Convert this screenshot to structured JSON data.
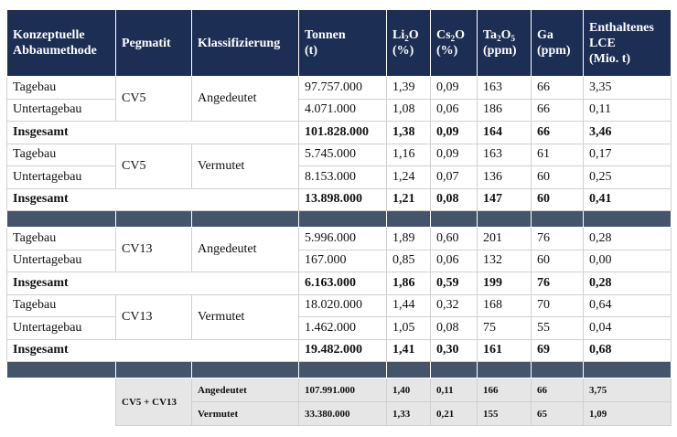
{
  "header": {
    "method": [
      "Konzeptuelle",
      "Abbaumethode"
    ],
    "pegmatit": "Pegmatit",
    "klass": "Klassifizierung",
    "tonnen": [
      "Tonnen",
      "(t)"
    ],
    "li": {
      "a": "Li",
      "s": "2",
      "b": "O",
      "u": "(%)"
    },
    "cs": {
      "a": "Cs",
      "s": "2",
      "b": "O",
      "u": "(%)"
    },
    "ta": {
      "a": "Ta",
      "s": "2",
      "b": "O",
      "s2": "5",
      "u": "(ppm)"
    },
    "ga": [
      "Ga",
      "(ppm)"
    ],
    "lce": [
      "Enthaltenes",
      "LCE",
      "(Mio. t)"
    ]
  },
  "groups": [
    {
      "peg": "CV5",
      "klass": "Angedeutet",
      "rows": [
        [
          "Tagebau",
          "97.757.000",
          "1,39",
          "0,09",
          "163",
          "66",
          "3,35"
        ],
        [
          "Untertagebau",
          "4.071.000",
          "1,08",
          "0,06",
          "186",
          "66",
          "0,11"
        ]
      ],
      "total": [
        "Insgesamt",
        "101.828.000",
        "1,38",
        "0,09",
        "164",
        "66",
        "3,46"
      ]
    },
    {
      "peg": "CV5",
      "klass": "Vermutet",
      "rows": [
        [
          "Tagebau",
          "5.745.000",
          "1,16",
          "0,09",
          "163",
          "61",
          "0,17"
        ],
        [
          "Untertagebau",
          "8.153.000",
          "1,24",
          "0,07",
          "136",
          "60",
          "0,25"
        ]
      ],
      "total": [
        "Insgesamt",
        "13.898.000",
        "1,21",
        "0,08",
        "147",
        "60",
        "0,41"
      ]
    },
    {
      "peg": "CV13",
      "klass": "Angedeutet",
      "rows": [
        [
          "Tagebau",
          "5.996.000",
          "1,89",
          "0,60",
          "201",
          "76",
          "0,28"
        ],
        [
          "Untertagebau",
          "167.000",
          "0,85",
          "0,06",
          "132",
          "60",
          "0,00"
        ]
      ],
      "total": [
        "Insgesamt",
        "6.163.000",
        "1,86",
        "0,59",
        "199",
        "76",
        "0,28"
      ]
    },
    {
      "peg": "CV13",
      "klass": "Vermutet",
      "rows": [
        [
          "Tagebau",
          "18.020.000",
          "1,44",
          "0,32",
          "168",
          "70",
          "0,64"
        ],
        [
          "Untertagebau",
          "1.462.000",
          "1,05",
          "0,08",
          "75",
          "55",
          "0,04"
        ]
      ],
      "total": [
        "Insgesamt",
        "19.482.000",
        "1,41",
        "0,30",
        "161",
        "69",
        "0,68"
      ]
    }
  ],
  "summary": {
    "peg": "CV5 + CV13",
    "rows": [
      [
        "Angedeutet",
        "107.991.000",
        "1,40",
        "0,11",
        "166",
        "66",
        "3,75"
      ],
      [
        "Vermutet",
        "33.380.000",
        "1,33",
        "0,21",
        "155",
        "65",
        "1,09"
      ]
    ]
  },
  "colors": {
    "header": "#1c2e54",
    "separator": "#44546a",
    "summary": "#e6e6e6"
  }
}
